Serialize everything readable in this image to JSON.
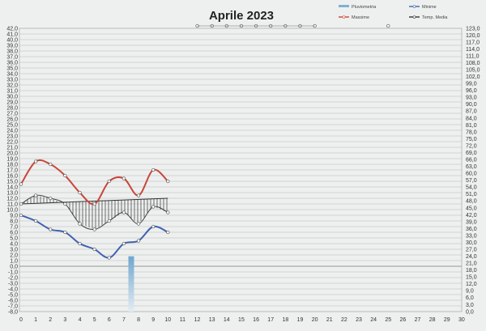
{
  "chart_data": {
    "type": "line",
    "title": "Aprile 2023",
    "x_ticks": [
      0,
      1,
      2,
      3,
      4,
      5,
      6,
      7,
      8,
      9,
      10,
      11,
      12,
      13,
      14,
      15,
      16,
      17,
      18,
      19,
      20,
      21,
      22,
      23,
      24,
      25,
      26,
      27,
      28,
      29,
      30
    ],
    "ylim_left": [
      -8,
      42
    ],
    "ylim_right": [
      0,
      123
    ],
    "y_left_ticks": [
      "42,0",
      "41,0",
      "40,0",
      "39,0",
      "38,0",
      "37,0",
      "36,0",
      "35,0",
      "34,0",
      "33,0",
      "32,0",
      "31,0",
      "30,0",
      "29,0",
      "28,0",
      "27,0",
      "26,0",
      "25,0",
      "24,0",
      "23,0",
      "22,0",
      "21,0",
      "20,0",
      "19,0",
      "18,0",
      "17,0",
      "16,0",
      "15,0",
      "14,0",
      "13,0",
      "12,0",
      "11,0",
      "10,0",
      "9,0",
      "8,0",
      "7,0",
      "6,0",
      "5,0",
      "4,0",
      "3,0",
      "2,0",
      "1,0",
      "0,0",
      "-1,0",
      "-2,0",
      "-3,0",
      "-4,0",
      "-5,0",
      "-6,0",
      "-7,0",
      "-8,0"
    ],
    "y_right_ticks": [
      "123,0",
      "120,0",
      "117,0",
      "114,0",
      "111,0",
      "108,0",
      "105,0",
      "102,0",
      "99,0",
      "96,0",
      "93,0",
      "90,0",
      "87,0",
      "84,0",
      "81,0",
      "78,0",
      "75,0",
      "72,0",
      "69,0",
      "66,0",
      "63,0",
      "60,0",
      "57,0",
      "54,0",
      "51,0",
      "48,0",
      "45,0",
      "42,0",
      "39,0",
      "36,0",
      "33,0",
      "30,0",
      "27,0",
      "24,0",
      "21,0",
      "18,0",
      "15,0",
      "12,0",
      "9,0",
      "6,0",
      "3,0",
      "0,0"
    ],
    "grid": true,
    "legend_position": "top-right",
    "legend": [
      {
        "name": "Pluviometria",
        "kind": "bar"
      },
      {
        "name": "Minime",
        "kind": "line"
      },
      {
        "name": "Massime",
        "kind": "line"
      },
      {
        "name": "Temp. Media",
        "kind": "line"
      }
    ],
    "series": {
      "massime": {
        "name": "Massime",
        "color": "#c8463c",
        "x": [
          0,
          1,
          2,
          3,
          4,
          5,
          6,
          7,
          8,
          9,
          10
        ],
        "y": [
          14.5,
          18.5,
          18.0,
          16.0,
          13.0,
          11.0,
          15.0,
          15.5,
          12.5,
          17.0,
          15.0
        ]
      },
      "minime": {
        "name": "Minime",
        "color": "#3f62b3",
        "x": [
          0,
          1,
          2,
          3,
          4,
          5,
          6,
          7,
          8,
          9,
          10
        ],
        "y": [
          9.0,
          8.0,
          6.5,
          6.0,
          4.0,
          3.0,
          1.5,
          4.0,
          4.5,
          7.0,
          6.0
        ]
      },
      "temp_media": {
        "name": "Temp. Media",
        "color": "#333333",
        "x": [
          0,
          1,
          2,
          3,
          4,
          5,
          6,
          7,
          8,
          9,
          10
        ],
        "y": [
          11.0,
          12.5,
          12.0,
          11.0,
          7.5,
          6.5,
          8.0,
          9.5,
          7.5,
          10.5,
          9.5
        ],
        "placeholder_markers_x": [
          12,
          13,
          14,
          15,
          16,
          17,
          18,
          19,
          20,
          25
        ]
      },
      "reference": {
        "color": "#333333",
        "x": [
          0,
          10
        ],
        "y": [
          11.0,
          12.0
        ]
      },
      "pluviometria": {
        "name": "Pluviometria",
        "color": "#7fb1d3",
        "axis": "right",
        "x": [
          7.5
        ],
        "y": [
          24.0
        ]
      }
    }
  }
}
